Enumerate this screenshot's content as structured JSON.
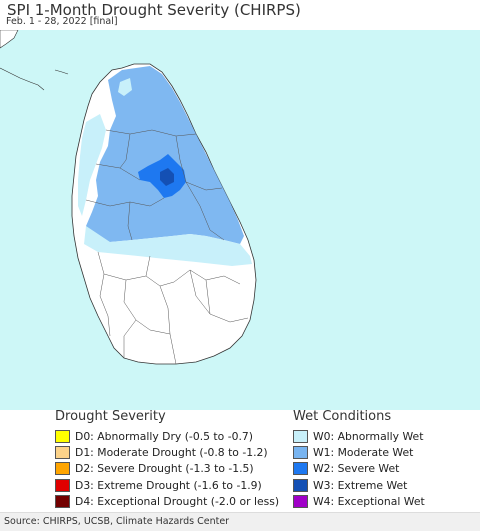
{
  "header": {
    "title": "SPI 1-Month Drought Severity (CHIRPS)",
    "subtitle": "Feb. 1 - 28, 2022 [final]"
  },
  "legend_drought": {
    "heading": "Drought Severity",
    "items": [
      {
        "label": "D0: Abnormally Dry (-0.5 to -0.7)",
        "color": "#ffff00"
      },
      {
        "label": "D1: Moderate Drought (-0.8 to -1.2)",
        "color": "#fcd38a"
      },
      {
        "label": "D2: Severe Drought (-1.3 to -1.5)",
        "color": "#ffa500"
      },
      {
        "label": "D3: Extreme Drought (-1.6 to -1.9)",
        "color": "#e00000"
      },
      {
        "label": "D4: Exceptional Drought (-2.0 or less)",
        "color": "#730000"
      }
    ]
  },
  "legend_wet": {
    "heading": "Wet Conditions",
    "items": [
      {
        "label": "W0: Abnormally Wet",
        "color": "#c8f0fa"
      },
      {
        "label": "W1: Moderate Wet",
        "color": "#78b4f0"
      },
      {
        "label": "W2: Severe Wet",
        "color": "#1e78f0"
      },
      {
        "label": "W3: Extreme Wet",
        "color": "#1450b4"
      },
      {
        "label": "W4: Exceptional Wet",
        "color": "#a000c8"
      }
    ]
  },
  "map": {
    "ocean_color": "#cdf7f7",
    "land_color": "#ffffff"
  },
  "footer": {
    "source": "Source: CHIRPS, UCSB, Climate Hazards Center"
  }
}
